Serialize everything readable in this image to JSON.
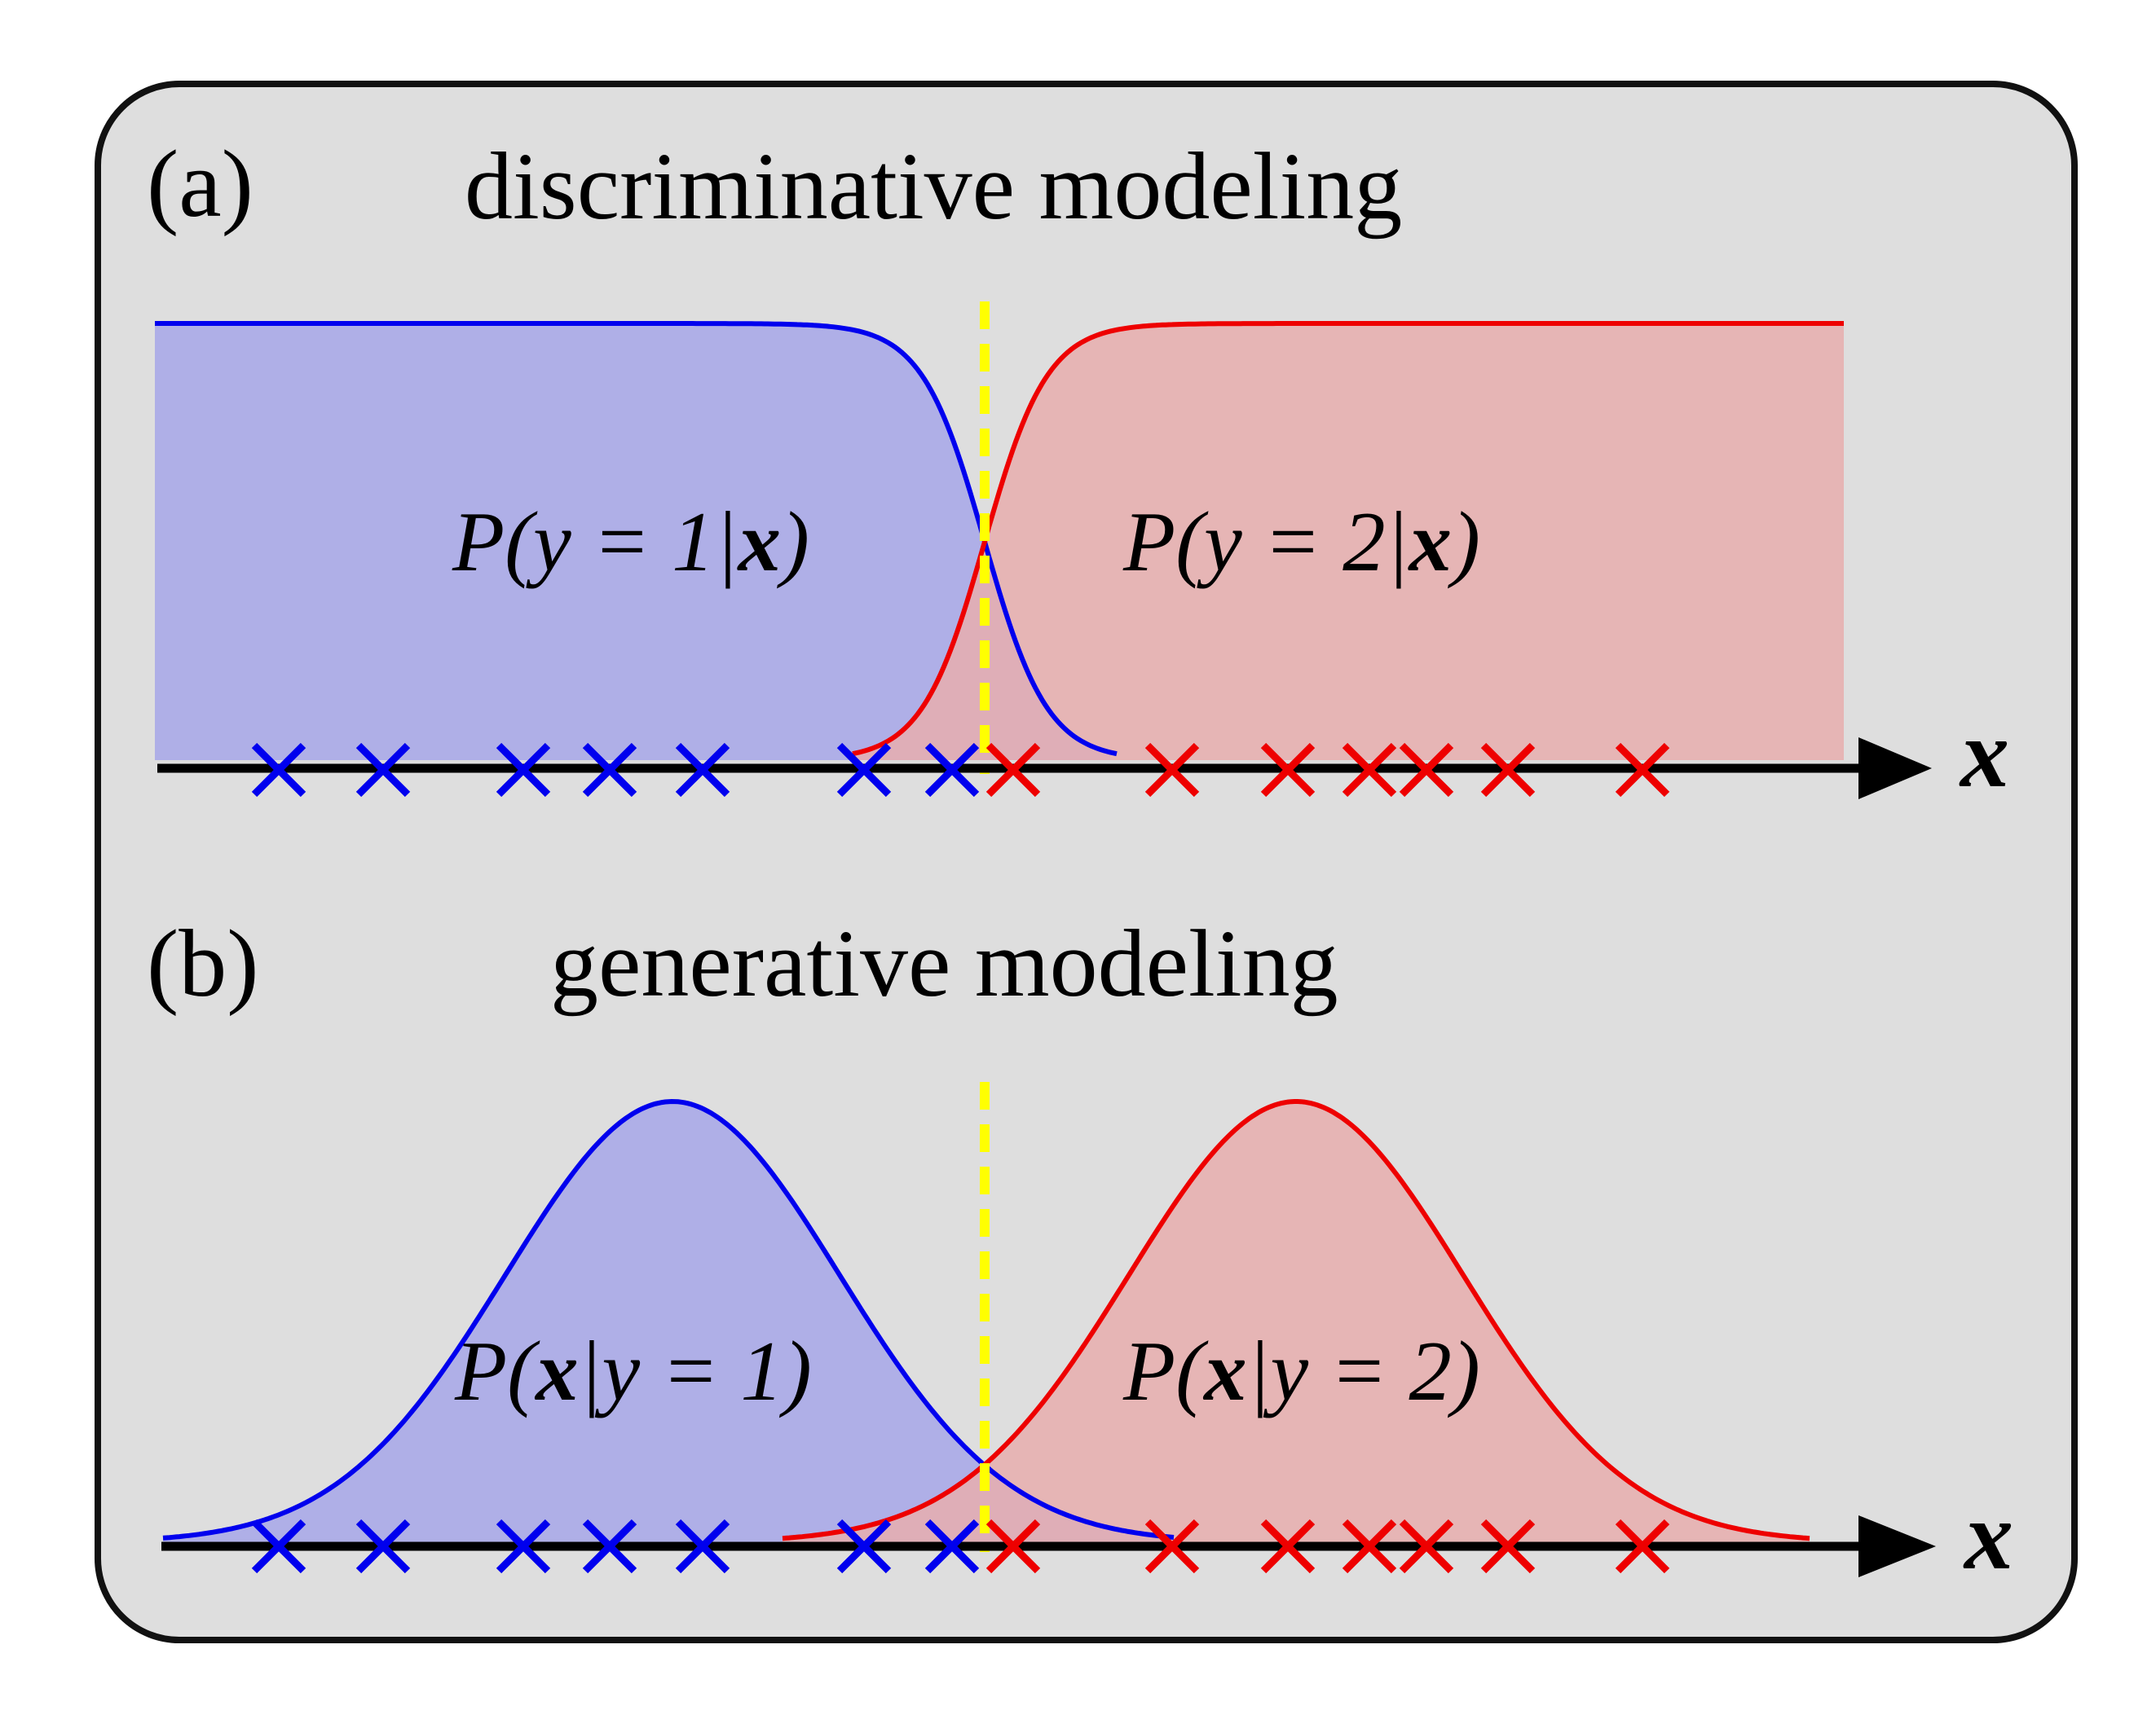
{
  "colors": {
    "panel_fill": "#dedede",
    "panel_border": "#111111",
    "class1_line": "#0000ee",
    "class1_fill": "#aaaae8",
    "class2_line": "#ee0000",
    "class2_fill": "#e8aeae",
    "boundary": "#ffff00",
    "axis": "#000000"
  },
  "panel_a": {
    "tag": "(a)",
    "title": "discriminative modeling",
    "label1": {
      "pre": "P(y = 1|",
      "bold": "x",
      "post": ")"
    },
    "label2": {
      "pre": "P(y = 2|",
      "bold": "x",
      "post": ")"
    },
    "axis_label": "x"
  },
  "panel_b": {
    "tag": "(b)",
    "title": "generative modeling",
    "label1": {
      "pre": "P(",
      "bold": "x",
      "post": "|y = 1)"
    },
    "label2": {
      "pre": "P(",
      "bold": "x",
      "post": "|y = 2)"
    },
    "axis_label": "x"
  },
  "markers": {
    "class1": [
      "blue-cross",
      "blue-cross",
      "blue-cross",
      "blue-cross",
      "blue-cross",
      "blue-cross",
      "blue-cross"
    ],
    "class2": [
      "red-cross",
      "red-cross",
      "red-cross",
      "red-cross",
      "red-cross",
      "red-cross",
      "red-cross"
    ]
  },
  "boundary_style": "dashed"
}
